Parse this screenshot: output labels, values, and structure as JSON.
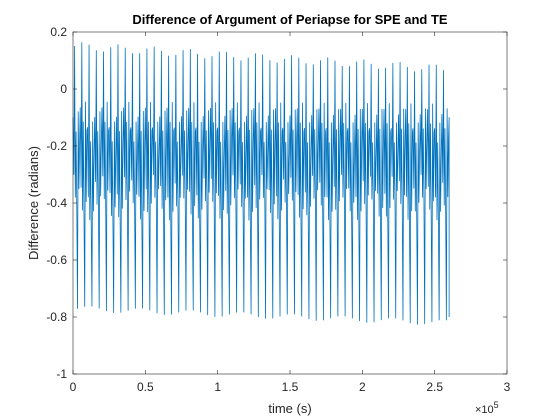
{
  "chart_data": {
    "type": "line",
    "title": "Difference of Argument of Periapse for SPE and TE",
    "xlabel": "time (s)",
    "ylabel": "Difference (radians)",
    "xlim": [
      0,
      300000
    ],
    "ylim": [
      -1,
      0.2
    ],
    "x_ticks": [
      0,
      50000,
      100000,
      150000,
      200000,
      250000,
      300000
    ],
    "x_tick_labels": [
      "0",
      "0.5",
      "1",
      "1.5",
      "2",
      "2.5",
      "3"
    ],
    "x_exponent_label": "×10",
    "x_exponent_power": "5",
    "y_ticks": [
      -1,
      -0.8,
      -0.6,
      -0.4,
      -0.2,
      0,
      0.2
    ],
    "y_tick_labels": [
      "-1",
      "-0.8",
      "-0.6",
      "-0.4",
      "-0.2",
      "0",
      "0.2"
    ],
    "grid": false,
    "legend": "none",
    "series": [
      {
        "color": "#0072BD",
        "x_start": 0,
        "x_end": 260000,
        "cycles": 52,
        "max_start": 0.15,
        "max_end": 0.07,
        "min_start": -0.77,
        "min_end": -0.82,
        "inner_high": -0.1,
        "inner_low": -0.42
      }
    ]
  }
}
